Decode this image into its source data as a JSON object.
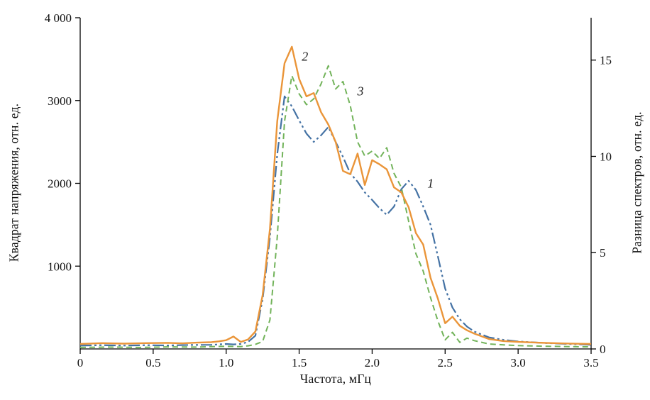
{
  "figure": {
    "background": "#ffffff",
    "axis_color": "#000000"
  },
  "chart_data": {
    "type": "line",
    "title": "",
    "xlabel": "Частота, мГц",
    "ylabel_left": "Квадрат напряжения, отн. ед.",
    "ylabel_right": "Разница спектров, отн. ед.",
    "xlim": [
      0,
      3.5
    ],
    "ylim_left": [
      0,
      4000
    ],
    "ylim_right": [
      0,
      17.2
    ],
    "grid": false,
    "legend": "none",
    "x_ticks": [
      {
        "v": 0,
        "label": "0"
      },
      {
        "v": 0.5,
        "label": "0.5"
      },
      {
        "v": 1.0,
        "label": "1.0"
      },
      {
        "v": 1.5,
        "label": "1.5"
      },
      {
        "v": 2.0,
        "label": "2.0"
      },
      {
        "v": 2.5,
        "label": "2.5"
      },
      {
        "v": 3.0,
        "label": "3.0"
      },
      {
        "v": 3.5,
        "label": "3.5"
      }
    ],
    "y_ticks_left": [
      {
        "v": 1000,
        "label": "1000"
      },
      {
        "v": 2000,
        "label": "2000"
      },
      {
        "v": 3000,
        "label": "3000"
      },
      {
        "v": 4000,
        "label": "4 000"
      }
    ],
    "y_ticks_right": [
      {
        "v": 0,
        "label": "0"
      },
      {
        "v": 5,
        "label": "5"
      },
      {
        "v": 10,
        "label": "10"
      },
      {
        "v": 15,
        "label": "15"
      }
    ],
    "series": [
      {
        "name": "1",
        "color": "#4472a4",
        "style": "dash-dot-dot",
        "dash": "16,4,3,4,3,4",
        "width": 2.2,
        "axis": "left",
        "points": [
          [
            0,
            40
          ],
          [
            0.15,
            45
          ],
          [
            0.3,
            40
          ],
          [
            0.45,
            45
          ],
          [
            0.6,
            42
          ],
          [
            0.75,
            48
          ],
          [
            0.9,
            50
          ],
          [
            1.0,
            60
          ],
          [
            1.05,
            55
          ],
          [
            1.1,
            60
          ],
          [
            1.15,
            85
          ],
          [
            1.2,
            160
          ],
          [
            1.25,
            600
          ],
          [
            1.3,
            1350
          ],
          [
            1.35,
            2350
          ],
          [
            1.4,
            3050
          ],
          [
            1.45,
            2930
          ],
          [
            1.5,
            2760
          ],
          [
            1.55,
            2600
          ],
          [
            1.6,
            2500
          ],
          [
            1.65,
            2580
          ],
          [
            1.7,
            2680
          ],
          [
            1.75,
            2500
          ],
          [
            1.8,
            2320
          ],
          [
            1.85,
            2120
          ],
          [
            1.9,
            2020
          ],
          [
            1.95,
            1890
          ],
          [
            2.0,
            1800
          ],
          [
            2.05,
            1700
          ],
          [
            2.1,
            1620
          ],
          [
            2.15,
            1720
          ],
          [
            2.2,
            1930
          ],
          [
            2.25,
            2030
          ],
          [
            2.3,
            1920
          ],
          [
            2.35,
            1720
          ],
          [
            2.4,
            1500
          ],
          [
            2.45,
            1120
          ],
          [
            2.5,
            730
          ],
          [
            2.55,
            500
          ],
          [
            2.6,
            360
          ],
          [
            2.65,
            270
          ],
          [
            2.7,
            210
          ],
          [
            2.8,
            140
          ],
          [
            2.9,
            110
          ],
          [
            3.0,
            90
          ],
          [
            3.2,
            70
          ],
          [
            3.35,
            60
          ],
          [
            3.5,
            50
          ]
        ]
      },
      {
        "name": "3",
        "color": "#72b35a",
        "style": "dashed",
        "dash": "8,5",
        "width": 2.0,
        "axis": "left",
        "points": [
          [
            0,
            18
          ],
          [
            0.2,
            22
          ],
          [
            0.4,
            18
          ],
          [
            0.6,
            25
          ],
          [
            0.8,
            22
          ],
          [
            0.9,
            28
          ],
          [
            1.0,
            32
          ],
          [
            1.1,
            28
          ],
          [
            1.15,
            38
          ],
          [
            1.2,
            55
          ],
          [
            1.25,
            90
          ],
          [
            1.3,
            350
          ],
          [
            1.35,
            1350
          ],
          [
            1.4,
            2750
          ],
          [
            1.45,
            3300
          ],
          [
            1.5,
            3080
          ],
          [
            1.55,
            2950
          ],
          [
            1.6,
            3020
          ],
          [
            1.65,
            3200
          ],
          [
            1.7,
            3420
          ],
          [
            1.75,
            3140
          ],
          [
            1.8,
            3230
          ],
          [
            1.85,
            2940
          ],
          [
            1.9,
            2500
          ],
          [
            1.95,
            2330
          ],
          [
            2.0,
            2390
          ],
          [
            2.05,
            2300
          ],
          [
            2.1,
            2430
          ],
          [
            2.15,
            2120
          ],
          [
            2.2,
            1950
          ],
          [
            2.25,
            1540
          ],
          [
            2.3,
            1150
          ],
          [
            2.35,
            940
          ],
          [
            2.4,
            620
          ],
          [
            2.45,
            340
          ],
          [
            2.5,
            110
          ],
          [
            2.55,
            200
          ],
          [
            2.6,
            80
          ],
          [
            2.65,
            130
          ],
          [
            2.7,
            100
          ],
          [
            2.8,
            60
          ],
          [
            2.9,
            50
          ],
          [
            3.0,
            40
          ],
          [
            3.2,
            32
          ],
          [
            3.5,
            25
          ]
        ]
      },
      {
        "name": "2",
        "color": "#ea9539",
        "style": "solid",
        "dash": "",
        "width": 2.4,
        "axis": "left",
        "points": [
          [
            0,
            60
          ],
          [
            0.15,
            70
          ],
          [
            0.3,
            64
          ],
          [
            0.45,
            70
          ],
          [
            0.6,
            74
          ],
          [
            0.7,
            68
          ],
          [
            0.8,
            76
          ],
          [
            0.9,
            82
          ],
          [
            0.95,
            92
          ],
          [
            1.0,
            105
          ],
          [
            1.05,
            150
          ],
          [
            1.1,
            85
          ],
          [
            1.15,
            115
          ],
          [
            1.2,
            210
          ],
          [
            1.25,
            650
          ],
          [
            1.3,
            1450
          ],
          [
            1.35,
            2750
          ],
          [
            1.4,
            3450
          ],
          [
            1.45,
            3650
          ],
          [
            1.5,
            3260
          ],
          [
            1.55,
            3050
          ],
          [
            1.6,
            3090
          ],
          [
            1.65,
            2860
          ],
          [
            1.7,
            2710
          ],
          [
            1.75,
            2500
          ],
          [
            1.8,
            2150
          ],
          [
            1.85,
            2110
          ],
          [
            1.9,
            2360
          ],
          [
            1.95,
            1980
          ],
          [
            2.0,
            2280
          ],
          [
            2.05,
            2230
          ],
          [
            2.1,
            2170
          ],
          [
            2.15,
            1950
          ],
          [
            2.2,
            1890
          ],
          [
            2.25,
            1710
          ],
          [
            2.3,
            1400
          ],
          [
            2.35,
            1260
          ],
          [
            2.4,
            860
          ],
          [
            2.45,
            610
          ],
          [
            2.5,
            310
          ],
          [
            2.55,
            390
          ],
          [
            2.6,
            280
          ],
          [
            2.65,
            225
          ],
          [
            2.7,
            185
          ],
          [
            2.8,
            120
          ],
          [
            2.9,
            95
          ],
          [
            3.0,
            85
          ],
          [
            3.2,
            72
          ],
          [
            3.35,
            65
          ],
          [
            3.5,
            60
          ]
        ]
      }
    ],
    "annotations": [
      {
        "text": "2",
        "x": 1.54,
        "y": 3480
      },
      {
        "text": "3",
        "x": 1.92,
        "y": 3060
      },
      {
        "text": "1",
        "x": 2.4,
        "y": 1950
      }
    ]
  }
}
